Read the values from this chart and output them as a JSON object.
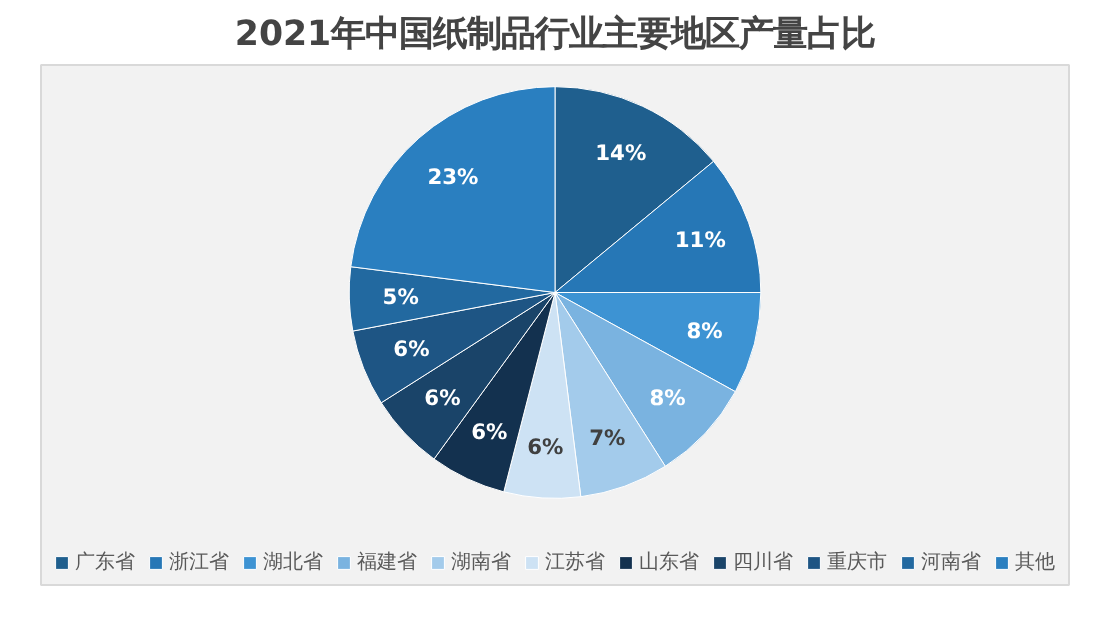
{
  "chart_data": {
    "type": "pie",
    "title": "2021年中国纸制品行业主要地区产量占比",
    "categories": [
      "广东省",
      "浙江省",
      "湖北省",
      "福建省",
      "湖南省",
      "江苏省",
      "山东省",
      "四川省",
      "重庆市",
      "河南省",
      "其他"
    ],
    "values": [
      14,
      11,
      8,
      8,
      7,
      6,
      6,
      6,
      6,
      5,
      23
    ],
    "colors": [
      "#1f5f8e",
      "#2677b6",
      "#3d93d3",
      "#7ab3e0",
      "#a3cbeb",
      "#cde2f4",
      "#13314f",
      "#1a4469",
      "#1e5584",
      "#2269a0",
      "#2a7fc0"
    ],
    "value_labels": [
      "14%",
      "11%",
      "8%",
      "8%",
      "7%",
      "6%",
      "6%",
      "6%",
      "6%",
      "5%",
      "23%"
    ],
    "legend": "bottom"
  }
}
